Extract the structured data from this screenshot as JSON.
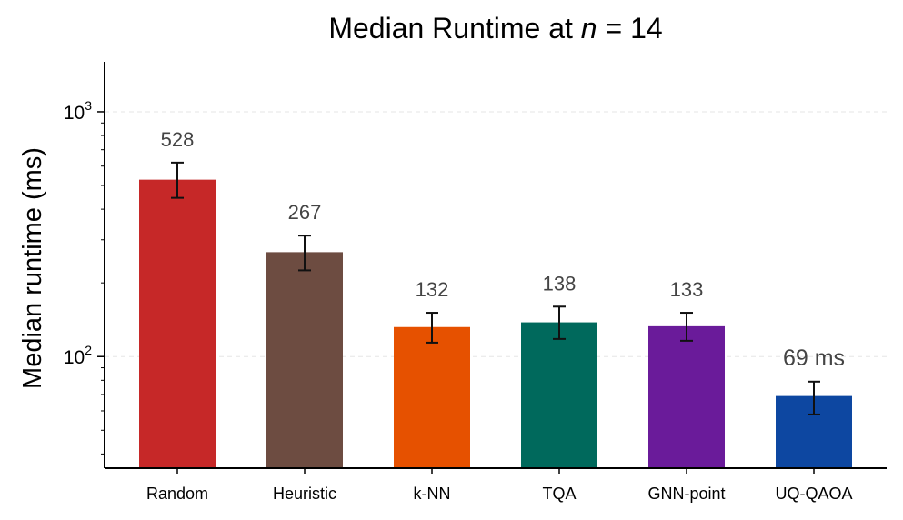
{
  "chart_data": {
    "type": "bar",
    "title_prefix": "Median Runtime at ",
    "title_var": "n",
    "title_suffix": " = 14",
    "xlabel": "",
    "ylabel": "Median runtime (ms)",
    "yscale": "log",
    "ylim": [
      35,
      1600
    ],
    "yticks": [
      {
        "base": "10",
        "exp": "2",
        "value": 100
      },
      {
        "base": "10",
        "exp": "3",
        "value": 1000
      }
    ],
    "grid": true,
    "categories": [
      "Random",
      "Heuristic",
      "k-NN",
      "TQA",
      "GNN-point",
      "UQ-QAOA"
    ],
    "values": [
      528,
      267,
      132,
      138,
      133,
      69
    ],
    "error_low": [
      445,
      225,
      114,
      118,
      116,
      58
    ],
    "error_high": [
      620,
      312,
      151,
      160,
      151,
      79
    ],
    "data_labels": [
      "528",
      "267",
      "132",
      "138",
      "133",
      "69 ms"
    ],
    "colors": [
      "#c62828",
      "#6d4c41",
      "#e65100",
      "#00695c",
      "#6a1b9a",
      "#0d47a1"
    ],
    "highlight_label_color": "#0d47a1"
  }
}
